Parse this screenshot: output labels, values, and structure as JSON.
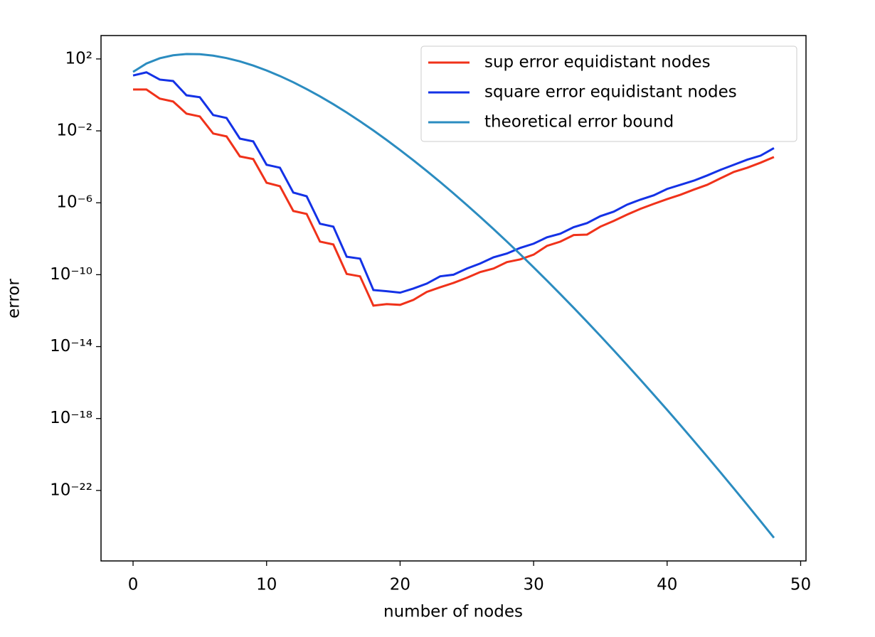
{
  "chart_data": {
    "type": "line",
    "xlabel": "number of nodes",
    "ylabel": "error",
    "yscale": "log",
    "x": [
      0,
      1,
      2,
      3,
      4,
      5,
      6,
      7,
      8,
      9,
      10,
      11,
      12,
      13,
      14,
      15,
      16,
      17,
      18,
      19,
      20,
      21,
      22,
      23,
      24,
      25,
      26,
      27,
      28,
      29,
      30,
      31,
      32,
      33,
      34,
      35,
      36,
      37,
      38,
      39,
      40,
      41,
      42,
      43,
      44,
      45,
      46,
      47,
      48
    ],
    "xlim": [
      -2.4,
      50.4
    ],
    "xticks": [
      0,
      10,
      20,
      30,
      40,
      50
    ],
    "ylim": [
      1.2e-26,
      2000
    ],
    "yticks": [
      {
        "value": 100,
        "label": "10²"
      },
      {
        "value": 0.01,
        "label": "10⁻²"
      },
      {
        "value": 1e-06,
        "label": "10⁻⁶"
      },
      {
        "value": 1e-10,
        "label": "10⁻¹⁰"
      },
      {
        "value": 1e-14,
        "label": "10⁻¹⁴"
      },
      {
        "value": 1e-18,
        "label": "10⁻¹⁸"
      },
      {
        "value": 1e-22,
        "label": "10⁻²²"
      }
    ],
    "legend": "upper right",
    "series": [
      {
        "name": "sup error equidistant nodes",
        "color": "#f0321a",
        "values": [
          2.0,
          2.0,
          0.62,
          0.43,
          0.091,
          0.063,
          0.0071,
          0.0049,
          0.00038,
          0.00027,
          1.3e-05,
          8.3e-06,
          3.5e-07,
          2.4e-07,
          6.9e-09,
          4.8e-09,
          1.1e-10,
          8.1e-11,
          1.9e-12,
          2.3e-12,
          2.1e-12,
          4e-12,
          1.1e-11,
          2e-11,
          3.5e-11,
          6.7e-11,
          1.4e-10,
          2.2e-10,
          5e-10,
          7.1e-10,
          1.3e-09,
          4e-09,
          6.9e-09,
          1.6e-08,
          1.7e-08,
          4.7e-08,
          9.8e-08,
          2.2e-07,
          4.6e-07,
          8.7e-07,
          1.6e-06,
          2.8e-06,
          5.4e-06,
          1e-05,
          2.3e-05,
          5.2e-05,
          8.9e-05,
          0.00017,
          0.00035
        ]
      },
      {
        "name": "square error equidistant nodes",
        "color": "#1432e6",
        "values": [
          12,
          18,
          7.1,
          5.9,
          0.95,
          0.74,
          0.076,
          0.052,
          0.0037,
          0.0026,
          0.00013,
          8.9e-05,
          3.7e-06,
          2.3e-06,
          6.8e-08,
          4.7e-08,
          1e-09,
          7.8e-10,
          1.4e-11,
          1.2e-11,
          1e-11,
          1.7e-11,
          3.2e-11,
          8.1e-11,
          1e-10,
          2.2e-10,
          4.2e-10,
          9.3e-10,
          1.5e-09,
          3.1e-09,
          5.3e-09,
          1.2e-08,
          1.9e-08,
          4.4e-08,
          7.4e-08,
          1.8e-07,
          3.2e-07,
          7.9e-07,
          1.5e-06,
          2.6e-06,
          5.9e-06,
          1e-05,
          1.7e-05,
          3.3e-05,
          6.8e-05,
          0.00013,
          0.00025,
          0.00042,
          0.0011
        ]
      },
      {
        "name": "theoretical error bound",
        "color": "#2b8cc0",
        "values": [
          19,
          55.8,
          109,
          160,
          187,
          183,
          153,
          112,
          73.3,
          43,
          22.9,
          11.2,
          5.05,
          2.11,
          0.826,
          0.303,
          0.105,
          0.034,
          0.0105,
          0.00308,
          0.000859,
          0.000229,
          5.83e-05,
          1.43e-05,
          3.34e-06,
          7.53e-07,
          1.64e-07,
          3.43e-08,
          6.93e-09,
          1.36e-09,
          2.56e-10,
          4.7e-11,
          8.34e-12,
          1.44e-12,
          2.41e-13,
          3.93e-14,
          6.22e-15,
          9.59e-16,
          1.44e-16,
          2.11e-17,
          3.02e-18,
          4.22e-19,
          5.75e-20,
          7.67e-21,
          1e-21,
          1.27e-22,
          1.59e-23,
          1.94e-24,
          2.32e-25
        ]
      }
    ]
  }
}
